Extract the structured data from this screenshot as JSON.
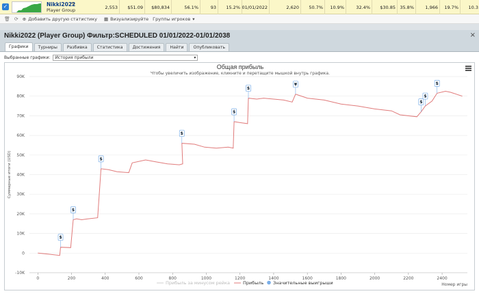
{
  "player": {
    "name": "Nikki2022",
    "group": "Player Group",
    "values": [
      "2,553",
      "$51.09",
      "$80,834",
      "56.1%",
      "93",
      "15.2%",
      "01/01/2022",
      "2,620",
      "50.7%",
      "10.9%",
      "32.4%",
      "$30.85",
      "35.8%",
      "1,966",
      "19.7%",
      "10.3"
    ]
  },
  "toolbar": {
    "add_label": "Добавить другую статистику",
    "visualize_label": "Визуализируйте",
    "groups_label": "Группы игроков"
  },
  "window": {
    "title": "Nikki2022 (Player Group) Фильтр:SCHEDULED 01/01/2022-01/01/2038",
    "close": "×"
  },
  "tabs": [
    {
      "label": "Графики",
      "active": true
    },
    {
      "label": "Турниры"
    },
    {
      "label": "Разбивка"
    },
    {
      "label": "Статистика"
    },
    {
      "label": "Достижения"
    },
    {
      "label": "Найти"
    },
    {
      "label": "Опубликовать"
    }
  ],
  "selector": {
    "label": "Выбранные графики:",
    "value": "История прибыли"
  },
  "colors": {
    "profit_line": "#e07a7a",
    "minus_rake_line": "#d0d0d0",
    "bigwin_marker": "#7aaee8",
    "accent": "#2b7fd6"
  },
  "chart_data": {
    "type": "line",
    "title": "Общая прибыль",
    "subtitle": "Чтобы увеличить изображение, кликните и перетащите мышкой внутрь графика.",
    "xlabel": "Номер игры",
    "ylabel": "Суммарные итоги (USD)",
    "xlim": [
      -50,
      2550
    ],
    "ylim": [
      -10000,
      90000
    ],
    "xticks": [
      "0",
      "200",
      "400",
      "600",
      "800",
      "1000",
      "1200",
      "1400",
      "1600",
      "1800",
      "2000",
      "2200",
      "2400"
    ],
    "yticks": [
      "-10K",
      "0",
      "10K",
      "20K",
      "30K",
      "40K",
      "50K",
      "60K",
      "70K",
      "80K",
      "90K"
    ],
    "legend": [
      "Прибыль за минусом рейка",
      "Прибыль",
      "Значительные выигрыши"
    ],
    "legend_position": "bottom",
    "series": [
      {
        "name": "Прибыль",
        "points": [
          [
            0,
            0
          ],
          [
            60,
            -500
          ],
          [
            130,
            -1200
          ],
          [
            135,
            3000
          ],
          [
            195,
            2800
          ],
          [
            210,
            17000
          ],
          [
            230,
            17500
          ],
          [
            260,
            17000
          ],
          [
            300,
            17500
          ],
          [
            355,
            18000
          ],
          [
            375,
            43000
          ],
          [
            420,
            42500
          ],
          [
            470,
            41500
          ],
          [
            540,
            41000
          ],
          [
            560,
            46000
          ],
          [
            640,
            47500
          ],
          [
            700,
            46500
          ],
          [
            770,
            45500
          ],
          [
            840,
            45000
          ],
          [
            860,
            45500
          ],
          [
            855,
            56000
          ],
          [
            930,
            55500
          ],
          [
            990,
            54000
          ],
          [
            1060,
            53500
          ],
          [
            1130,
            54000
          ],
          [
            1160,
            53500
          ],
          [
            1165,
            67000
          ],
          [
            1200,
            66500
          ],
          [
            1245,
            66000
          ],
          [
            1250,
            79000
          ],
          [
            1300,
            78500
          ],
          [
            1340,
            79000
          ],
          [
            1400,
            78500
          ],
          [
            1460,
            78000
          ],
          [
            1510,
            77000
          ],
          [
            1530,
            81000
          ],
          [
            1600,
            79000
          ],
          [
            1700,
            78000
          ],
          [
            1800,
            76000
          ],
          [
            1900,
            75000
          ],
          [
            2000,
            73500
          ],
          [
            2100,
            72500
          ],
          [
            2150,
            70500
          ],
          [
            2250,
            69500
          ],
          [
            2275,
            72000
          ],
          [
            2300,
            75000
          ],
          [
            2340,
            77500
          ],
          [
            2370,
            81500
          ],
          [
            2420,
            82500
          ],
          [
            2450,
            82000
          ],
          [
            2520,
            80000
          ]
        ]
      }
    ],
    "big_wins": [
      {
        "x": 135,
        "y": 3000,
        "label": "$"
      },
      {
        "x": 210,
        "y": 17000,
        "label": "$"
      },
      {
        "x": 375,
        "y": 43000,
        "label": "$"
      },
      {
        "x": 855,
        "y": 56000,
        "label": "$"
      },
      {
        "x": 1165,
        "y": 67000,
        "label": "$"
      },
      {
        "x": 1250,
        "y": 79000,
        "label": "$"
      },
      {
        "x": 1530,
        "y": 81000,
        "label": "¥"
      },
      {
        "x": 2275,
        "y": 72000,
        "label": "$"
      },
      {
        "x": 2300,
        "y": 75000,
        "label": "$"
      },
      {
        "x": 2370,
        "y": 81500,
        "label": "$"
      }
    ]
  }
}
